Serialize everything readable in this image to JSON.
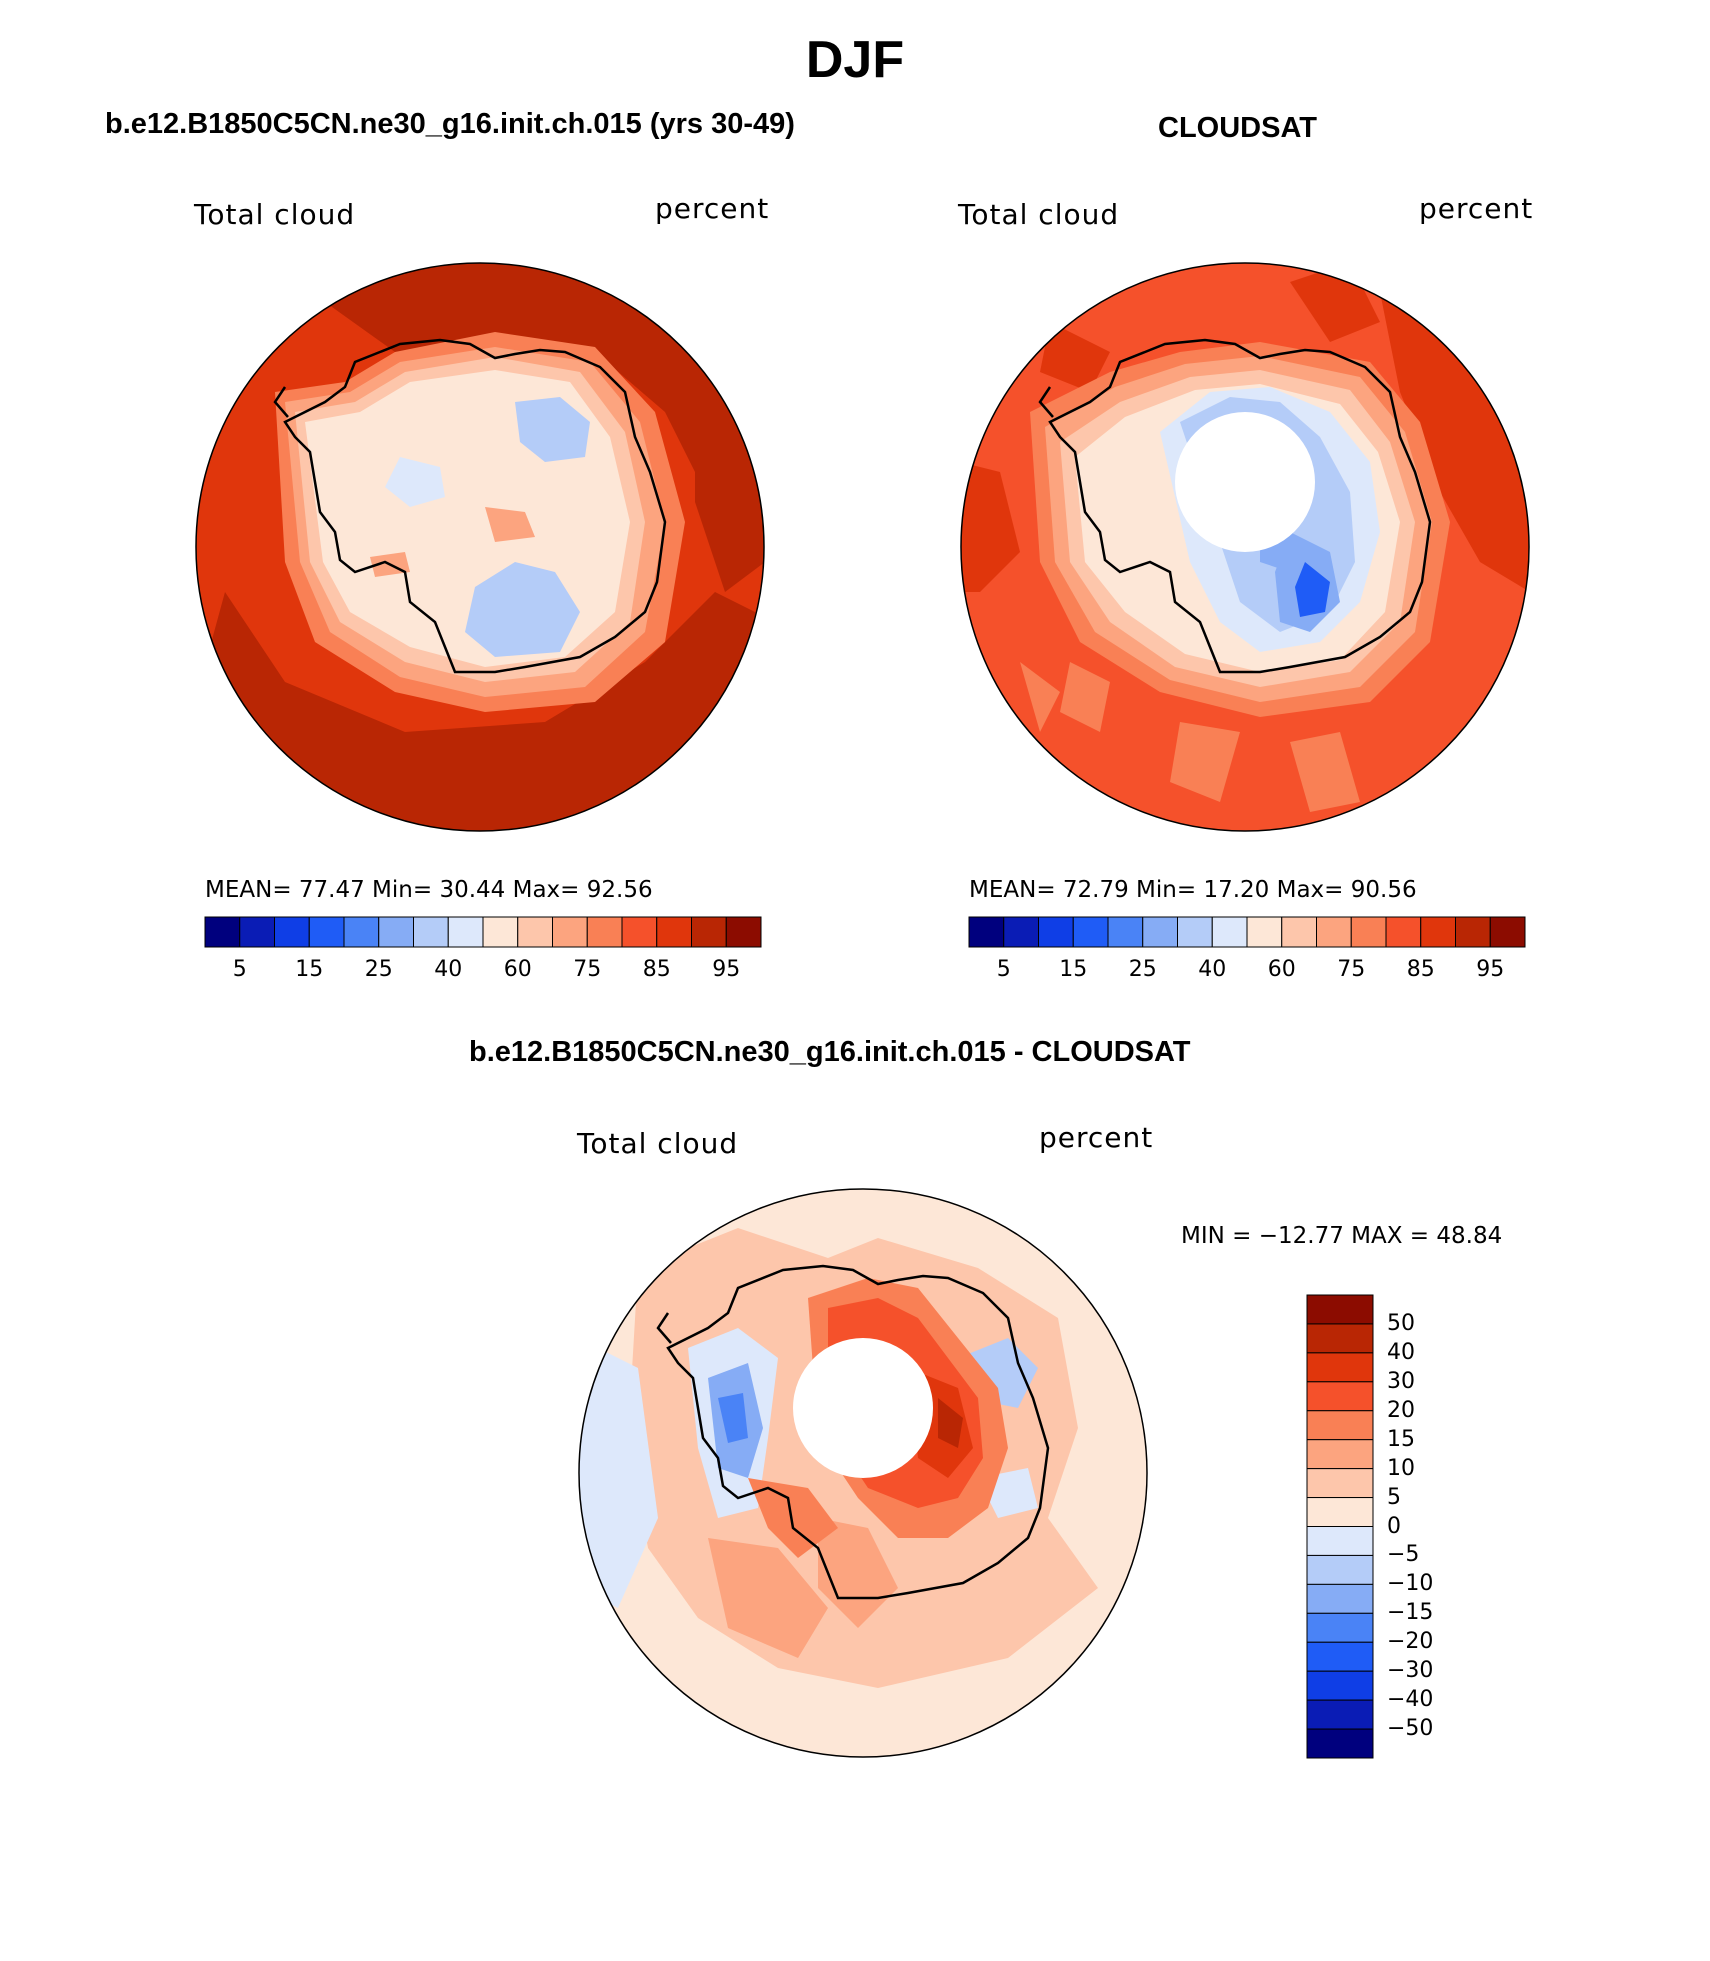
{
  "title": "DJF",
  "colors": {
    "abs_scale": [
      "#00007e",
      "#0a1cb5",
      "#0f3ee6",
      "#1f5cf6",
      "#4a83f6",
      "#86acf5",
      "#b4ccf8",
      "#dde8fb",
      "#fde7d7",
      "#fdc6ab",
      "#fca47f",
      "#f98055",
      "#f5512b",
      "#e0360c",
      "#b92604",
      "#8c0c00"
    ],
    "diff_scale": [
      "#00007e",
      "#0a1cb5",
      "#0f3ee6",
      "#1f5cf6",
      "#4a83f6",
      "#86acf5",
      "#b4ccf8",
      "#dde8fb",
      "#fde7d7",
      "#fdc6ab",
      "#fca47f",
      "#f98055",
      "#f5512b",
      "#e0360c",
      "#b92604",
      "#8c0c00"
    ]
  },
  "panels": [
    {
      "title": "b.e12.B1850C5CN.ne30_g16.init.ch.015 (yrs 30-49)",
      "variable": "Total cloud",
      "units": "percent",
      "stats": "MEAN=   77.47   Min=    30.44   Max=    92.56",
      "colorbar_ticks": [
        "5",
        "15",
        "25",
        "40",
        "60",
        "75",
        "85",
        "95"
      ],
      "missing_pole": false
    },
    {
      "title": "CLOUDSAT",
      "variable": "Total cloud",
      "units": "percent",
      "stats": "MEAN=   72.79   Min=    17.20   Max=    90.56",
      "colorbar_ticks": [
        "5",
        "15",
        "25",
        "40",
        "60",
        "75",
        "85",
        "95"
      ],
      "missing_pole": true
    },
    {
      "title": "b.e12.B1850C5CN.ne30_g16.init.ch.015 - CLOUDSAT",
      "variable": "Total cloud",
      "units": "percent",
      "stats": "MIN = −12.77  MAX =   48.84",
      "colorbar_ticks": [
        "50",
        "40",
        "30",
        "20",
        "15",
        "10",
        "5",
        "0",
        "−5",
        "−10",
        "−15",
        "−20",
        "−30",
        "−40",
        "−50"
      ],
      "missing_pole": true
    }
  ]
}
